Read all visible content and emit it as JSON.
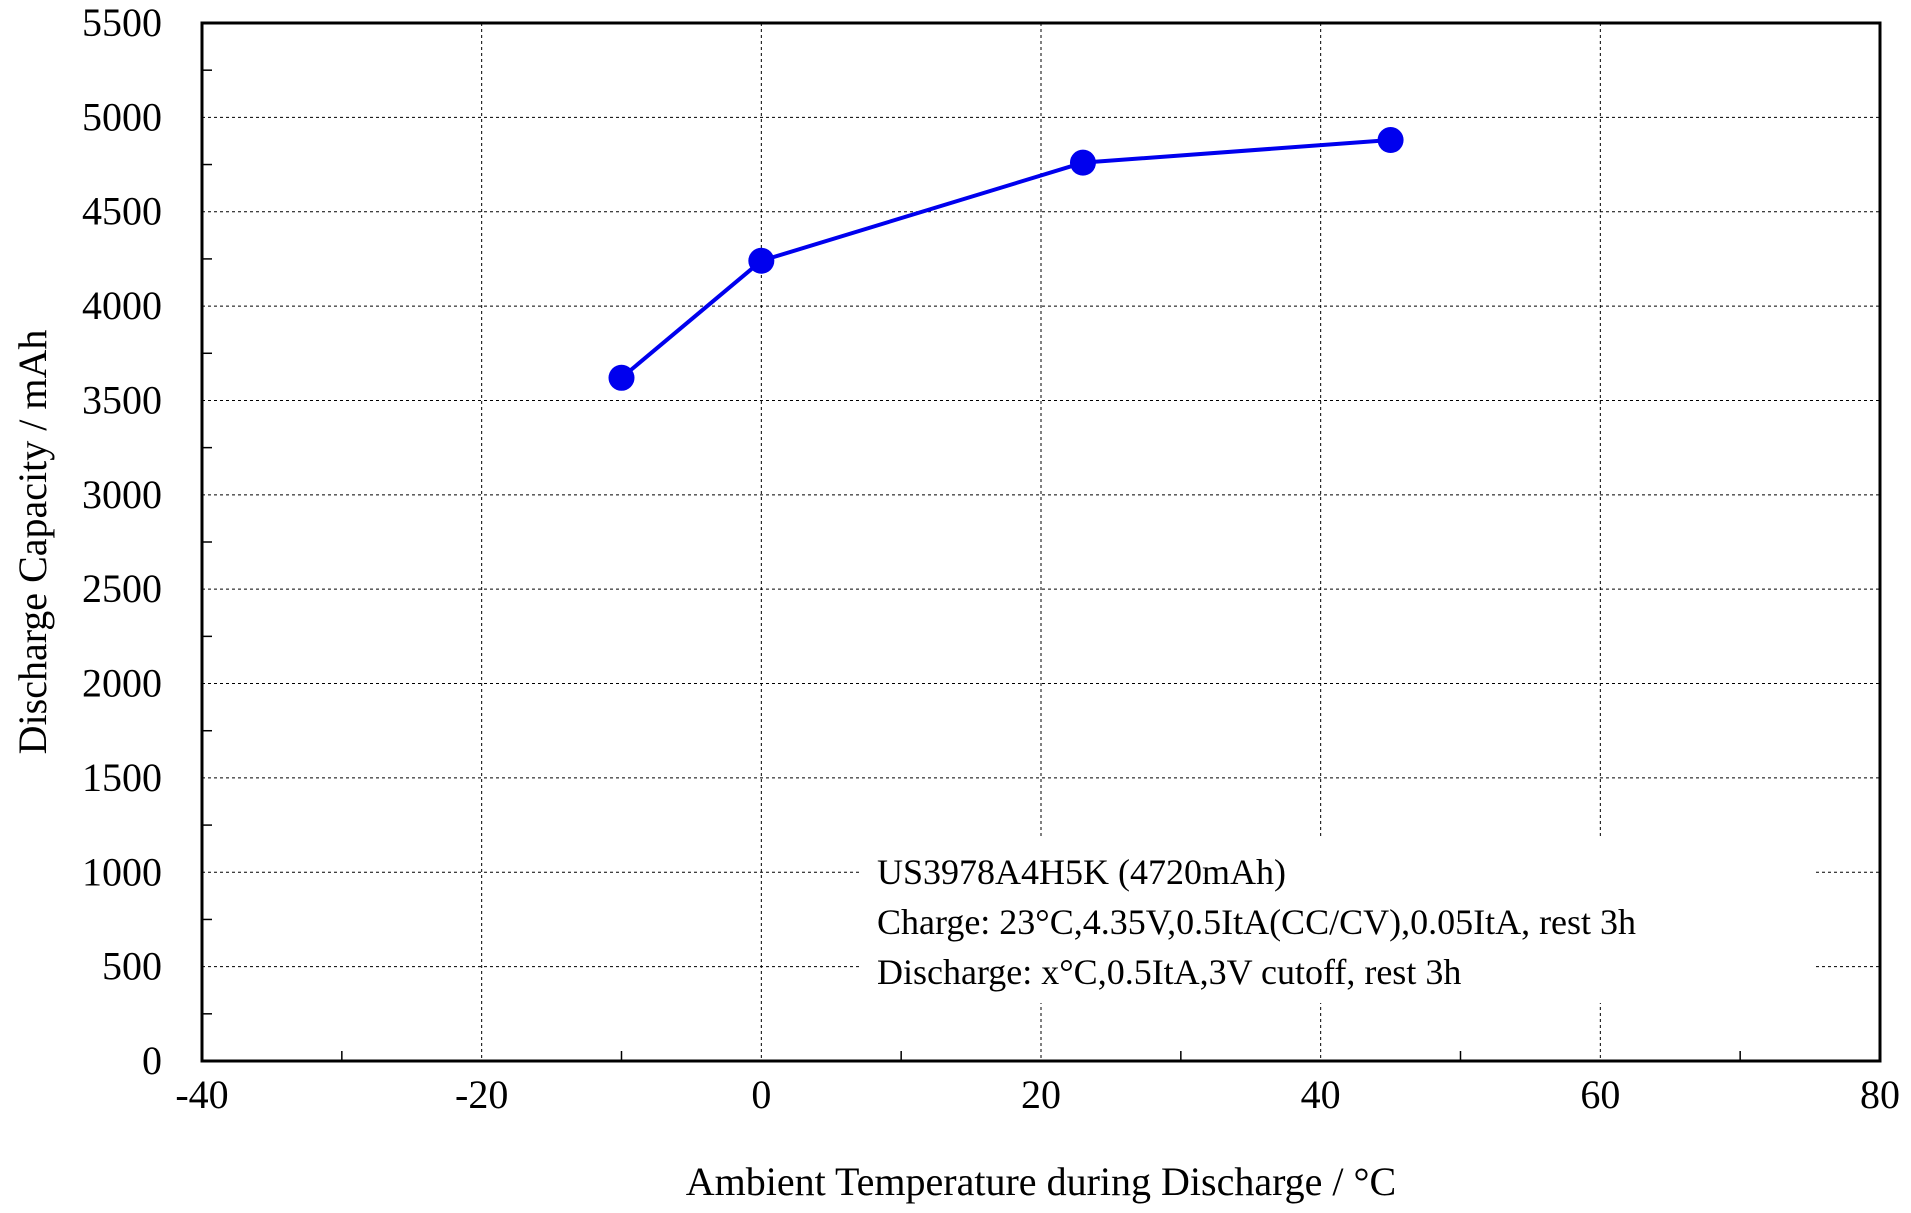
{
  "chart_data": {
    "type": "line",
    "xlabel": "Ambient Temperature during Discharge / °C",
    "ylabel": "Discharge Capacity / mAh",
    "xlim": [
      -40,
      80
    ],
    "ylim": [
      0,
      5500
    ],
    "xticks": [
      -40,
      -20,
      0,
      20,
      40,
      60,
      80
    ],
    "yticks": [
      0,
      500,
      1000,
      1500,
      2000,
      2500,
      3000,
      3500,
      4000,
      4500,
      5000,
      5500
    ],
    "grid": true,
    "series": [
      {
        "x": [
          -10,
          0,
          23,
          45
        ],
        "y": [
          3620,
          4240,
          4760,
          4880
        ],
        "color": "#0000ee",
        "marker": "circle"
      }
    ],
    "annotation_lines": [
      "US3978A4H5K (4720mAh)",
      "Charge: 23°C,4.35V,0.5ItA(CC/CV),0.05ItA, rest 3h",
      "Discharge: x°C,0.5ItA,3V cutoff, rest 3h"
    ]
  }
}
